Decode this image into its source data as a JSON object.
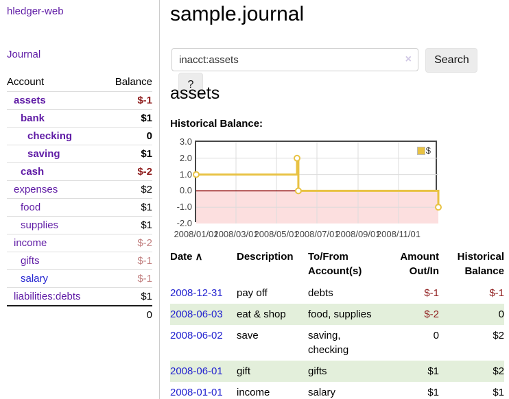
{
  "palette": {
    "link_purple": "#5f1ba5",
    "link_blue": "#2323d0",
    "neg_dark": "#8f1d1d",
    "neg_light": "#c28181",
    "row_green": "#e3efdb",
    "accent_gold": "#e8c243",
    "negative_region": "#fcdfdf",
    "zero_line": "#8b0000",
    "grid_line": "#dcdcdc",
    "plot_border": "#464646"
  },
  "sidebar": {
    "app_title": "hledger-web",
    "nav": {
      "journal": "Journal"
    },
    "table": {
      "account_header": "Account",
      "balance_header": "Balance"
    },
    "accounts": [
      {
        "name": "assets",
        "balance": "$-1",
        "indent_class": "ind-1",
        "name_class": "purple strong",
        "balance_class": "neg strong"
      },
      {
        "name": "bank",
        "balance": "$1",
        "indent_class": "ind-2",
        "name_class": "purple strong",
        "balance_class": "strong"
      },
      {
        "name": "checking",
        "balance": "0",
        "indent_class": "ind-3",
        "name_class": "purple strong",
        "balance_class": "strong"
      },
      {
        "name": "saving",
        "balance": "$1",
        "indent_class": "ind-3",
        "name_class": "purple strong",
        "balance_class": "strong"
      },
      {
        "name": "cash",
        "balance": "$-2",
        "indent_class": "ind-2",
        "name_class": "purple strong",
        "balance_class": "neg strong"
      },
      {
        "name": "expenses",
        "balance": "$2",
        "indent_class": "ind-1",
        "name_class": "purple",
        "balance_class": ""
      },
      {
        "name": "food",
        "balance": "$1",
        "indent_class": "ind-2",
        "name_class": "purple",
        "balance_class": ""
      },
      {
        "name": "supplies",
        "balance": "$1",
        "indent_class": "ind-2",
        "name_class": "purple",
        "balance_class": ""
      },
      {
        "name": "income",
        "balance": "$-2",
        "indent_class": "ind-1",
        "name_class": "purple",
        "balance_class": "neg-light"
      },
      {
        "name": "gifts",
        "balance": "$-1",
        "indent_class": "ind-2",
        "name_class": "purple",
        "balance_class": "neg-light"
      },
      {
        "name": "salary",
        "balance": "$-1",
        "indent_class": "ind-2",
        "name_class": "blue",
        "balance_class": "neg-light"
      },
      {
        "name": "liabilities:debts",
        "balance": "$1",
        "indent_class": "ind-1",
        "name_class": "purple",
        "balance_class": ""
      }
    ],
    "total": "0"
  },
  "main": {
    "title": "sample.journal",
    "search": {
      "value": "inacct:assets",
      "clear_icon": "×",
      "button": "Search",
      "help_button": "?"
    },
    "account_heading": "assets",
    "chart_label": "Historical Balance:",
    "register": {
      "headers": {
        "date": "Date",
        "sort_indicator": "∧",
        "description": "Description",
        "tofrom": "To/From\nAccount(s)",
        "amount": "Amount\nOut/In",
        "balance": "Historical\nBalance"
      },
      "rows": [
        {
          "date": "2008-12-31",
          "description": "pay off",
          "accounts": "debts",
          "amount": "$-1",
          "amount_class": "neg",
          "balance": "$-1",
          "balance_class": "neg"
        },
        {
          "date": "2008-06-03",
          "description": "eat & shop",
          "accounts": "food, supplies",
          "amount": "$-2",
          "amount_class": "neg",
          "balance": "0",
          "balance_class": ""
        },
        {
          "date": "2008-06-02",
          "description": "save",
          "accounts": "saving,\nchecking",
          "amount": "0",
          "amount_class": "",
          "balance": "$2",
          "balance_class": ""
        },
        {
          "date": "2008-06-01",
          "description": "gift",
          "accounts": "gifts",
          "amount": "$1",
          "amount_class": "",
          "balance": "$2",
          "balance_class": ""
        },
        {
          "date": "2008-01-01",
          "description": "income",
          "accounts": "salary",
          "amount": "$1",
          "amount_class": "",
          "balance": "$1",
          "balance_class": ""
        }
      ]
    }
  },
  "chart_data": {
    "type": "line",
    "step": true,
    "title": "Historical Balance",
    "series": [
      {
        "name": "$",
        "points": [
          {
            "x": "2008-01-01",
            "y": 1
          },
          {
            "x": "2008-06-01",
            "y": 2
          },
          {
            "x": "2008-06-03",
            "y": 0
          },
          {
            "x": "2008-12-31",
            "y": -1
          }
        ]
      }
    ],
    "x_range": [
      "2008-01-01",
      "2008-12-31"
    ],
    "ylim": [
      -2,
      3
    ],
    "yticks": [
      3.0,
      2.0,
      1.0,
      0.0,
      -1.0,
      -2.0
    ],
    "xticks": [
      "2008/01/01",
      "2008/03/01",
      "2008/05/01",
      "2008/07/01",
      "2008/09/01",
      "2008/11/01"
    ],
    "legend": {
      "label": "$",
      "position": "top-right"
    },
    "negative_region_fill": true,
    "grid": true
  }
}
